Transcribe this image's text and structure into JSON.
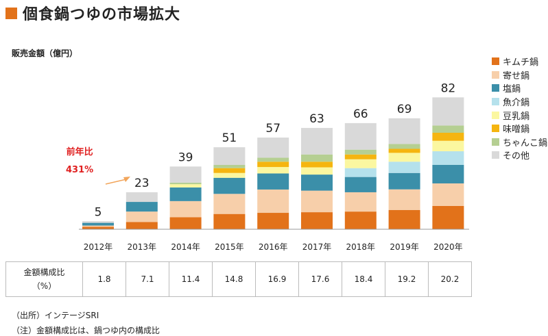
{
  "title": "個食鍋つゆの市場拡大",
  "unit_label": "販売金額（億円）",
  "growth": {
    "label": "前年比",
    "value": "431%"
  },
  "colors": {
    "title_square": "#e2721a",
    "growth_text": "#e02020",
    "arrow": "#f2a55a"
  },
  "legend": [
    {
      "name": "キムチ鍋",
      "color": "#e2721a"
    },
    {
      "name": "寄せ鍋",
      "color": "#f7cfaa"
    },
    {
      "name": "塩鍋",
      "color": "#3b8fa9"
    },
    {
      "name": "魚介鍋",
      "color": "#b5e1ec"
    },
    {
      "name": "豆乳鍋",
      "color": "#fbf7a0"
    },
    {
      "name": "味噌鍋",
      "color": "#f5b510"
    },
    {
      "name": "ちゃんこ鍋",
      "color": "#b5cf92"
    },
    {
      "name": "その他",
      "color": "#d9d9d9"
    }
  ],
  "table": {
    "header": [
      "金額構成比",
      "（%）"
    ],
    "values": [
      "1.8",
      "7.1",
      "11.4",
      "14.8",
      "16.9",
      "17.6",
      "18.4",
      "19.2",
      "20.2"
    ]
  },
  "source": "（出所）インテージSRI",
  "note": "（注）金額構成比は、鍋つゆ内の構成比",
  "chart_data": {
    "type": "bar",
    "stacked": true,
    "categories": [
      "2012年",
      "2013年",
      "2014年",
      "2015年",
      "2016年",
      "2017年",
      "2018年",
      "2019年",
      "2020年"
    ],
    "totals": [
      5,
      23,
      39,
      51,
      57,
      63,
      66,
      69,
      82
    ],
    "ylim": [
      0,
      90
    ],
    "series": [
      {
        "name": "キムチ鍋",
        "values": [
          1.5,
          4.5,
          7.5,
          9.5,
          10.2,
          10.6,
          11.0,
          12.0,
          14.5
        ]
      },
      {
        "name": "寄せ鍋",
        "values": [
          0.8,
          6.5,
          10.0,
          12.5,
          14.5,
          13.4,
          12.0,
          12.8,
          14.0
        ]
      },
      {
        "name": "塩鍋",
        "values": [
          1.7,
          6.0,
          8.5,
          10.0,
          10.0,
          10.0,
          9.5,
          10.2,
          11.5
        ]
      },
      {
        "name": "魚介鍋",
        "values": [
          0,
          0,
          0,
          0,
          0,
          0,
          5.5,
          7.0,
          8.5
        ]
      },
      {
        "name": "豆乳鍋",
        "values": [
          0,
          0,
          2.0,
          3.0,
          4.0,
          4.5,
          5.5,
          5.5,
          6.5
        ]
      },
      {
        "name": "味噌鍋",
        "values": [
          0,
          0,
          0,
          3.0,
          3.3,
          3.5,
          3.0,
          2.5,
          5.0
        ]
      },
      {
        "name": "ちゃんこ鍋",
        "values": [
          0,
          0,
          1.0,
          2.0,
          2.5,
          4.5,
          3.0,
          3.0,
          4.5
        ]
      },
      {
        "name": "その他",
        "values": [
          1.0,
          6.0,
          10.0,
          11.0,
          12.5,
          16.5,
          16.5,
          16.0,
          17.5
        ]
      }
    ]
  }
}
